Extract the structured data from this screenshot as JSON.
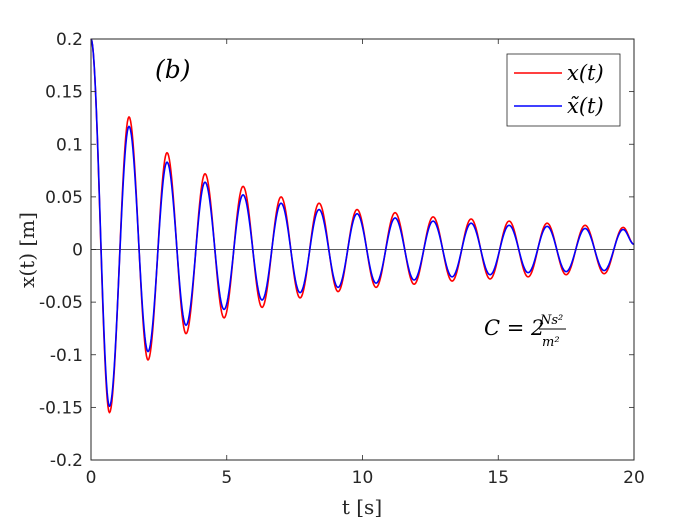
{
  "chart_data": {
    "type": "line",
    "panel_label": "(b)",
    "xlabel": "t [s]",
    "ylabel": "x(t) [m]",
    "xlim": [
      0,
      20
    ],
    "ylim": [
      -0.2,
      0.2
    ],
    "xticks": [
      0,
      5,
      10,
      15,
      20
    ],
    "xtick_labels": [
      "0",
      "5",
      "10",
      "15",
      "20"
    ],
    "yticks": [
      -0.2,
      -0.15,
      -0.1,
      -0.05,
      0,
      0.05,
      0.1,
      0.15,
      0.2
    ],
    "ytick_labels": [
      "-0.2",
      "-0.15",
      "-0.1",
      "-0.05",
      "0",
      "0.05",
      "0.1",
      "0.15",
      "0.2"
    ],
    "grid": false,
    "zero_line": true,
    "legend_position": "top-right",
    "annotation": "C = 2 Ns²/m²",
    "series": [
      {
        "name": "x(t)",
        "color": "#ff0000",
        "peaks": [
          {
            "t": 0.0,
            "x": 0.2
          },
          {
            "t": 0.68,
            "x": -0.155
          },
          {
            "t": 1.4,
            "x": 0.126
          },
          {
            "t": 2.1,
            "x": -0.105
          },
          {
            "t": 2.8,
            "x": 0.092
          },
          {
            "t": 3.5,
            "x": -0.08
          },
          {
            "t": 4.2,
            "x": 0.072
          },
          {
            "t": 4.9,
            "x": -0.065
          },
          {
            "t": 5.6,
            "x": 0.06
          },
          {
            "t": 6.3,
            "x": -0.055
          },
          {
            "t": 7.0,
            "x": 0.05
          },
          {
            "t": 7.7,
            "x": -0.046
          },
          {
            "t": 8.4,
            "x": 0.044
          },
          {
            "t": 9.1,
            "x": -0.04
          },
          {
            "t": 9.8,
            "x": 0.038
          },
          {
            "t": 10.5,
            "x": -0.036
          },
          {
            "t": 11.2,
            "x": 0.035
          },
          {
            "t": 11.9,
            "x": -0.033
          },
          {
            "t": 12.6,
            "x": 0.031
          },
          {
            "t": 13.3,
            "x": -0.03
          },
          {
            "t": 14.0,
            "x": 0.029
          },
          {
            "t": 14.7,
            "x": -0.028
          },
          {
            "t": 15.4,
            "x": 0.027
          },
          {
            "t": 16.1,
            "x": -0.026
          },
          {
            "t": 16.8,
            "x": 0.025
          },
          {
            "t": 17.5,
            "x": -0.024
          },
          {
            "t": 18.2,
            "x": 0.023
          },
          {
            "t": 18.9,
            "x": -0.023
          },
          {
            "t": 19.6,
            "x": 0.021
          },
          {
            "t": 20.0,
            "x": 0.005
          }
        ]
      },
      {
        "name": "x̃(t)",
        "color": "#0000ff",
        "peaks": [
          {
            "t": 0.0,
            "x": 0.2
          },
          {
            "t": 0.68,
            "x": -0.149
          },
          {
            "t": 1.4,
            "x": 0.117
          },
          {
            "t": 2.1,
            "x": -0.097
          },
          {
            "t": 2.8,
            "x": 0.083
          },
          {
            "t": 3.5,
            "x": -0.072
          },
          {
            "t": 4.2,
            "x": 0.064
          },
          {
            "t": 4.9,
            "x": -0.057
          },
          {
            "t": 5.6,
            "x": 0.052
          },
          {
            "t": 6.3,
            "x": -0.048
          },
          {
            "t": 7.0,
            "x": 0.044
          },
          {
            "t": 7.7,
            "x": -0.041
          },
          {
            "t": 8.4,
            "x": 0.038
          },
          {
            "t": 9.1,
            "x": -0.036
          },
          {
            "t": 9.8,
            "x": 0.034
          },
          {
            "t": 10.5,
            "x": -0.032
          },
          {
            "t": 11.2,
            "x": 0.03
          },
          {
            "t": 11.9,
            "x": -0.029
          },
          {
            "t": 12.6,
            "x": 0.027
          },
          {
            "t": 13.3,
            "x": -0.026
          },
          {
            "t": 14.0,
            "x": 0.025
          },
          {
            "t": 14.7,
            "x": -0.024
          },
          {
            "t": 15.4,
            "x": 0.023
          },
          {
            "t": 16.1,
            "x": -0.022
          },
          {
            "t": 16.8,
            "x": 0.022
          },
          {
            "t": 17.5,
            "x": -0.021
          },
          {
            "t": 18.2,
            "x": 0.02
          },
          {
            "t": 18.9,
            "x": -0.02
          },
          {
            "t": 19.6,
            "x": 0.019
          },
          {
            "t": 20.0,
            "x": 0.005
          }
        ]
      }
    ]
  }
}
